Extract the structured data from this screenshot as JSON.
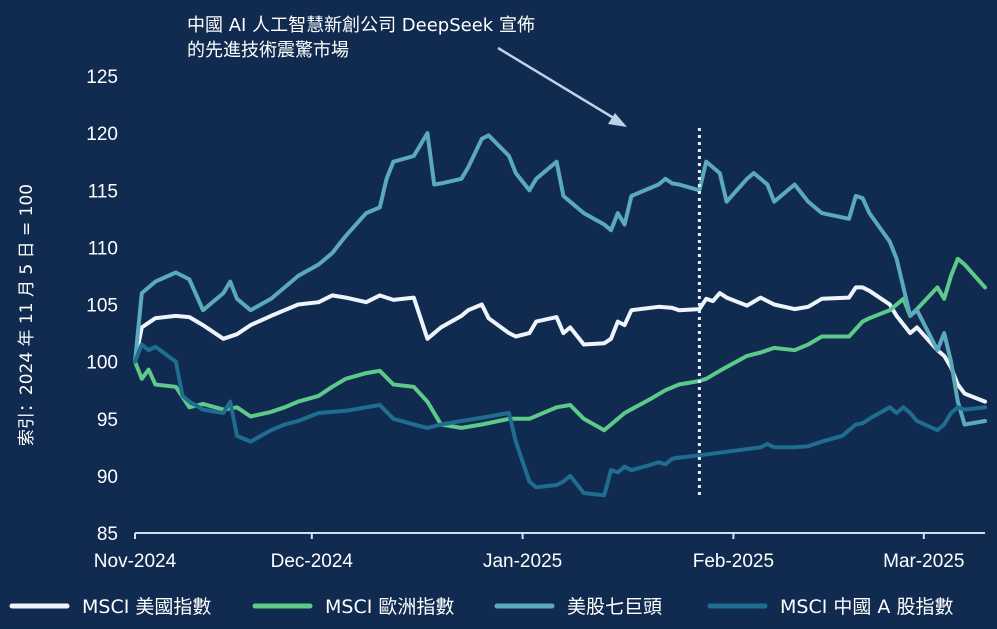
{
  "chart_data": {
    "type": "line",
    "ylabel": "索引：2024 年 11 月 5 日 = 100",
    "ylim": [
      85,
      125
    ],
    "yticks": [
      "125",
      "120",
      "115",
      "110",
      "105",
      "100",
      "95",
      "90",
      "85"
    ],
    "xlim": [
      "2024-11-05",
      "2025-03-10"
    ],
    "xticks": [
      {
        "label": "Nov-2024",
        "date": "2024-11-05"
      },
      {
        "label": "Dec-2024",
        "date": "2024-12-01"
      },
      {
        "label": "Jan-2025",
        "date": "2025-01-01"
      },
      {
        "label": "Feb-2025",
        "date": "2025-02-01"
      },
      {
        "label": "Mar-2025",
        "date": "2025-03-01"
      }
    ],
    "annotation": {
      "lines": [
        "中國 AI 人工智慧新創公司 DeepSeek 宣佈",
        "的先進技術震驚市場"
      ],
      "date": "2025-01-27"
    },
    "legend_position": "bottom",
    "grid": false,
    "series": [
      {
        "name": "MSCI 美國指數",
        "color": "#eef4fb",
        "points": [
          [
            "2024-11-05",
            100
          ],
          [
            "2024-11-06",
            103
          ],
          [
            "2024-11-08",
            103.8
          ],
          [
            "2024-11-11",
            104
          ],
          [
            "2024-11-13",
            103.9
          ],
          [
            "2024-11-15",
            103.2
          ],
          [
            "2024-11-18",
            102
          ],
          [
            "2024-11-20",
            102.4
          ],
          [
            "2024-11-22",
            103.2
          ],
          [
            "2024-11-25",
            104
          ],
          [
            "2024-11-27",
            104.5
          ],
          [
            "2024-11-29",
            105
          ],
          [
            "2024-12-02",
            105.2
          ],
          [
            "2024-12-04",
            105.8
          ],
          [
            "2024-12-06",
            105.6
          ],
          [
            "2024-12-09",
            105.2
          ],
          [
            "2024-12-11",
            105.8
          ],
          [
            "2024-12-13",
            105.4
          ],
          [
            "2024-12-16",
            105.6
          ],
          [
            "2024-12-18",
            102
          ],
          [
            "2024-12-20",
            103
          ],
          [
            "2024-12-23",
            104
          ],
          [
            "2024-12-24",
            104.5
          ],
          [
            "2024-12-26",
            105
          ],
          [
            "2024-12-27",
            103.8
          ],
          [
            "2024-12-30",
            102.5
          ],
          [
            "2024-12-31",
            102.2
          ],
          [
            "2025-01-02",
            102.5
          ],
          [
            "2025-01-03",
            103.5
          ],
          [
            "2025-01-06",
            103.9
          ],
          [
            "2025-01-07",
            102.5
          ],
          [
            "2025-01-08",
            103
          ],
          [
            "2025-01-10",
            101.5
          ],
          [
            "2025-01-13",
            101.6
          ],
          [
            "2025-01-14",
            102
          ],
          [
            "2025-01-15",
            103.5
          ],
          [
            "2025-01-16",
            103.2
          ],
          [
            "2025-01-17",
            104.5
          ],
          [
            "2025-01-21",
            104.8
          ],
          [
            "2025-01-23",
            104.7
          ],
          [
            "2025-01-24",
            104.5
          ],
          [
            "2025-01-27",
            104.6
          ],
          [
            "2025-01-28",
            105.5
          ],
          [
            "2025-01-29",
            105.3
          ],
          [
            "2025-01-30",
            106
          ],
          [
            "2025-01-31",
            105.6
          ],
          [
            "2025-02-03",
            104.9
          ],
          [
            "2025-02-05",
            105.6
          ],
          [
            "2025-02-07",
            105
          ],
          [
            "2025-02-10",
            104.6
          ],
          [
            "2025-02-12",
            104.8
          ],
          [
            "2025-02-14",
            105.5
          ],
          [
            "2025-02-18",
            105.6
          ],
          [
            "2025-02-19",
            106.5
          ],
          [
            "2025-02-20",
            106.5
          ],
          [
            "2025-02-21",
            106.2
          ],
          [
            "2025-02-24",
            105
          ],
          [
            "2025-02-25",
            104
          ],
          [
            "2025-02-27",
            102.5
          ],
          [
            "2025-02-28",
            103
          ],
          [
            "2025-03-03",
            101
          ],
          [
            "2025-03-04",
            100.5
          ],
          [
            "2025-03-05",
            99.5
          ],
          [
            "2025-03-06",
            98
          ],
          [
            "2025-03-07",
            97.2
          ],
          [
            "2025-03-10",
            96.5
          ]
        ]
      },
      {
        "name": "MSCI 歐洲指數",
        "color": "#5dc98a",
        "points": [
          [
            "2024-11-05",
            100
          ],
          [
            "2024-11-06",
            98.5
          ],
          [
            "2024-11-07",
            99.3
          ],
          [
            "2024-11-08",
            98
          ],
          [
            "2024-11-11",
            97.8
          ],
          [
            "2024-11-13",
            96
          ],
          [
            "2024-11-15",
            96.3
          ],
          [
            "2024-11-18",
            95.8
          ],
          [
            "2024-11-20",
            96
          ],
          [
            "2024-11-22",
            95.2
          ],
          [
            "2024-11-25",
            95.6
          ],
          [
            "2024-11-27",
            96
          ],
          [
            "2024-11-29",
            96.5
          ],
          [
            "2024-12-02",
            97
          ],
          [
            "2024-12-04",
            97.8
          ],
          [
            "2024-12-06",
            98.5
          ],
          [
            "2024-12-09",
            99
          ],
          [
            "2024-12-11",
            99.2
          ],
          [
            "2024-12-13",
            98
          ],
          [
            "2024-12-16",
            97.8
          ],
          [
            "2024-12-18",
            96.5
          ],
          [
            "2024-12-20",
            94.5
          ],
          [
            "2024-12-23",
            94.2
          ],
          [
            "2024-12-26",
            94.5
          ],
          [
            "2024-12-30",
            95
          ],
          [
            "2025-01-02",
            95
          ],
          [
            "2025-01-06",
            96
          ],
          [
            "2025-01-08",
            96.2
          ],
          [
            "2025-01-10",
            95
          ],
          [
            "2025-01-13",
            94
          ],
          [
            "2025-01-14",
            94.5
          ],
          [
            "2025-01-16",
            95.5
          ],
          [
            "2025-01-20",
            96.8
          ],
          [
            "2025-01-22",
            97.5
          ],
          [
            "2025-01-24",
            98
          ],
          [
            "2025-01-27",
            98.3
          ],
          [
            "2025-01-28",
            98.5
          ],
          [
            "2025-01-30",
            99.2
          ],
          [
            "2025-02-03",
            100.5
          ],
          [
            "2025-02-05",
            100.8
          ],
          [
            "2025-02-07",
            101.2
          ],
          [
            "2025-02-10",
            101
          ],
          [
            "2025-02-12",
            101.5
          ],
          [
            "2025-02-14",
            102.2
          ],
          [
            "2025-02-18",
            102.2
          ],
          [
            "2025-02-20",
            103.5
          ],
          [
            "2025-02-21",
            103.8
          ],
          [
            "2025-02-24",
            104.5
          ],
          [
            "2025-02-25",
            105
          ],
          [
            "2025-02-26",
            105.5
          ],
          [
            "2025-02-27",
            104
          ],
          [
            "2025-02-28",
            104.6
          ],
          [
            "2025-03-03",
            106.5
          ],
          [
            "2025-03-04",
            105.5
          ],
          [
            "2025-03-05",
            107.5
          ],
          [
            "2025-03-06",
            109
          ],
          [
            "2025-03-07",
            108.5
          ],
          [
            "2025-03-10",
            106.5
          ]
        ]
      },
      {
        "name": "美股七巨頭",
        "color": "#5aaabb",
        "points": [
          [
            "2024-11-05",
            100
          ],
          [
            "2024-11-06",
            106
          ],
          [
            "2024-11-08",
            107
          ],
          [
            "2024-11-11",
            107.8
          ],
          [
            "2024-11-13",
            107.2
          ],
          [
            "2024-11-15",
            104.5
          ],
          [
            "2024-11-18",
            106
          ],
          [
            "2024-11-19",
            107
          ],
          [
            "2024-11-20",
            105.5
          ],
          [
            "2024-11-22",
            104.5
          ],
          [
            "2024-11-25",
            105.5
          ],
          [
            "2024-11-27",
            106.5
          ],
          [
            "2024-11-29",
            107.5
          ],
          [
            "2024-12-02",
            108.5
          ],
          [
            "2024-12-04",
            109.5
          ],
          [
            "2024-12-06",
            111
          ],
          [
            "2024-12-09",
            113
          ],
          [
            "2024-12-11",
            113.5
          ],
          [
            "2024-12-12",
            116
          ],
          [
            "2024-12-13",
            117.5
          ],
          [
            "2024-12-16",
            118
          ],
          [
            "2024-12-17",
            119
          ],
          [
            "2024-12-18",
            120
          ],
          [
            "2024-12-19",
            115.5
          ],
          [
            "2024-12-20",
            115.6
          ],
          [
            "2024-12-23",
            116
          ],
          [
            "2024-12-24",
            117
          ],
          [
            "2024-12-26",
            119.5
          ],
          [
            "2024-12-27",
            119.8
          ],
          [
            "2024-12-30",
            118
          ],
          [
            "2024-12-31",
            116.5
          ],
          [
            "2025-01-02",
            115
          ],
          [
            "2025-01-03",
            116
          ],
          [
            "2025-01-06",
            117.5
          ],
          [
            "2025-01-07",
            114.5
          ],
          [
            "2025-01-08",
            114
          ],
          [
            "2025-01-10",
            113
          ],
          [
            "2025-01-13",
            112
          ],
          [
            "2025-01-14",
            111.5
          ],
          [
            "2025-01-15",
            113
          ],
          [
            "2025-01-16",
            112
          ],
          [
            "2025-01-17",
            114.5
          ],
          [
            "2025-01-21",
            115.5
          ],
          [
            "2025-01-22",
            116
          ],
          [
            "2025-01-23",
            115.6
          ],
          [
            "2025-01-24",
            115.5
          ],
          [
            "2025-01-27",
            115
          ],
          [
            "2025-01-28",
            117.5
          ],
          [
            "2025-01-29",
            117
          ],
          [
            "2025-01-30",
            116.5
          ],
          [
            "2025-01-31",
            114
          ],
          [
            "2025-02-03",
            116
          ],
          [
            "2025-02-04",
            116.5
          ],
          [
            "2025-02-06",
            115.5
          ],
          [
            "2025-02-07",
            114
          ],
          [
            "2025-02-10",
            115.5
          ],
          [
            "2025-02-12",
            114
          ],
          [
            "2025-02-14",
            113
          ],
          [
            "2025-02-18",
            112.5
          ],
          [
            "2025-02-19",
            114.5
          ],
          [
            "2025-02-20",
            114.3
          ],
          [
            "2025-02-21",
            113
          ],
          [
            "2025-02-24",
            110.5
          ],
          [
            "2025-02-25",
            109
          ],
          [
            "2025-02-27",
            104
          ],
          [
            "2025-02-28",
            104.5
          ],
          [
            "2025-03-03",
            101
          ],
          [
            "2025-03-04",
            102.5
          ],
          [
            "2025-03-05",
            100
          ],
          [
            "2025-03-06",
            96.5
          ],
          [
            "2025-03-07",
            94.5
          ],
          [
            "2025-03-10",
            94.8
          ]
        ]
      },
      {
        "name": "MSCI 中國 A 股指數",
        "color": "#1f6d8f",
        "points": [
          [
            "2024-11-05",
            100
          ],
          [
            "2024-11-06",
            101.5
          ],
          [
            "2024-11-07",
            101
          ],
          [
            "2024-11-08",
            101.3
          ],
          [
            "2024-11-11",
            100
          ],
          [
            "2024-11-12",
            97
          ],
          [
            "2024-11-13",
            96.5
          ],
          [
            "2024-11-15",
            95.8
          ],
          [
            "2024-11-18",
            95.5
          ],
          [
            "2024-11-19",
            96.5
          ],
          [
            "2024-11-20",
            93.5
          ],
          [
            "2024-11-22",
            93
          ],
          [
            "2024-11-25",
            94
          ],
          [
            "2024-11-27",
            94.5
          ],
          [
            "2024-11-29",
            94.8
          ],
          [
            "2024-12-02",
            95.5
          ],
          [
            "2024-12-04",
            95.6
          ],
          [
            "2024-12-06",
            95.7
          ],
          [
            "2024-12-09",
            96
          ],
          [
            "2024-12-11",
            96.2
          ],
          [
            "2024-12-13",
            95
          ],
          [
            "2024-12-16",
            94.5
          ],
          [
            "2024-12-18",
            94.2
          ],
          [
            "2024-12-20",
            94.5
          ],
          [
            "2024-12-23",
            94.8
          ],
          [
            "2024-12-25",
            95
          ],
          [
            "2024-12-27",
            95.2
          ],
          [
            "2024-12-30",
            95.5
          ],
          [
            "2024-12-31",
            93
          ],
          [
            "2025-01-02",
            89.5
          ],
          [
            "2025-01-03",
            89
          ],
          [
            "2025-01-06",
            89.2
          ],
          [
            "2025-01-07",
            89.5
          ],
          [
            "2025-01-08",
            90
          ],
          [
            "2025-01-10",
            88.5
          ],
          [
            "2025-01-13",
            88.3
          ],
          [
            "2025-01-14",
            90.5
          ],
          [
            "2025-01-15",
            90.3
          ],
          [
            "2025-01-16",
            90.8
          ],
          [
            "2025-01-17",
            90.5
          ],
          [
            "2025-01-20",
            91
          ],
          [
            "2025-01-21",
            91.2
          ],
          [
            "2025-01-22",
            91
          ],
          [
            "2025-01-23",
            91.5
          ],
          [
            "2025-01-24",
            91.6
          ],
          [
            "2025-01-27",
            91.8
          ],
          [
            "2025-02-05",
            92.5
          ],
          [
            "2025-02-06",
            92.8
          ],
          [
            "2025-02-07",
            92.5
          ],
          [
            "2025-02-10",
            92.5
          ],
          [
            "2025-02-12",
            92.6
          ],
          [
            "2025-02-14",
            93
          ],
          [
            "2025-02-17",
            93.5
          ],
          [
            "2025-02-18",
            94
          ],
          [
            "2025-02-19",
            94.5
          ],
          [
            "2025-02-20",
            94.6
          ],
          [
            "2025-02-21",
            95
          ],
          [
            "2025-02-24",
            96
          ],
          [
            "2025-02-25",
            95.5
          ],
          [
            "2025-02-26",
            96
          ],
          [
            "2025-02-27",
            95.5
          ],
          [
            "2025-02-28",
            94.8
          ],
          [
            "2025-03-03",
            94
          ],
          [
            "2025-03-04",
            94.5
          ],
          [
            "2025-03-05",
            95.5
          ],
          [
            "2025-03-06",
            96
          ],
          [
            "2025-03-07",
            95.8
          ],
          [
            "2025-03-10",
            96
          ]
        ]
      }
    ]
  }
}
